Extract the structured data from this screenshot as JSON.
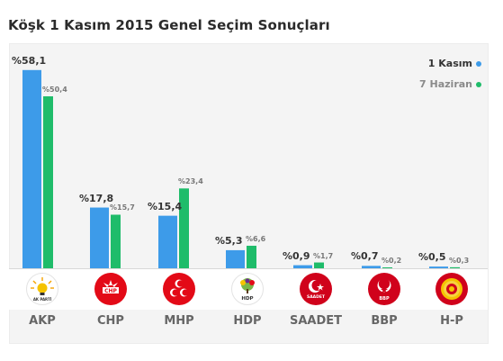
{
  "title": "Köşk 1 Kasım 2015 Genel Seçim Sonuçları",
  "legend": {
    "current": "1 Kasım",
    "previous": "7 Haziran",
    "current_color": "#3d9be9",
    "previous_color": "#1fbc6a"
  },
  "chart_data": {
    "type": "bar",
    "title": "Köşk 1 Kasım 2015 Genel Seçim Sonuçları",
    "categories": [
      "AKP",
      "CHP",
      "MHP",
      "HDP",
      "SAADET",
      "BBP",
      "H-P"
    ],
    "series": [
      {
        "name": "1 Kasım",
        "values": [
          58.1,
          17.8,
          15.4,
          5.3,
          0.9,
          0.7,
          0.5
        ],
        "labels": [
          "%58,1",
          "%17,8",
          "%15,4",
          "%5,3",
          "%0,9",
          "%0,7",
          "%0,5"
        ]
      },
      {
        "name": "7 Haziran",
        "values": [
          50.4,
          15.7,
          23.4,
          6.6,
          1.7,
          0.2,
          0.3
        ],
        "labels": [
          "%50,4",
          "%15,7",
          "%23,4",
          "%6,6",
          "%1,7",
          "%0,2",
          "%0,3"
        ]
      }
    ],
    "ylim": [
      0,
      60
    ],
    "grid": false,
    "legend_position": "top-right"
  },
  "logos": [
    {
      "icon": "akp-lightbulb-icon",
      "text": "AK PARTİ"
    },
    {
      "icon": "chp-six-arrows-icon",
      "text": "CHP"
    },
    {
      "icon": "mhp-three-crescents-icon",
      "text": ""
    },
    {
      "icon": "hdp-tree-icon",
      "text": "HDP"
    },
    {
      "icon": "saadet-crescent-star-icon",
      "text": "SAADET"
    },
    {
      "icon": "bbp-crescent-star-icon",
      "text": "BBP"
    },
    {
      "icon": "hp-sun-icon",
      "text": ""
    }
  ]
}
